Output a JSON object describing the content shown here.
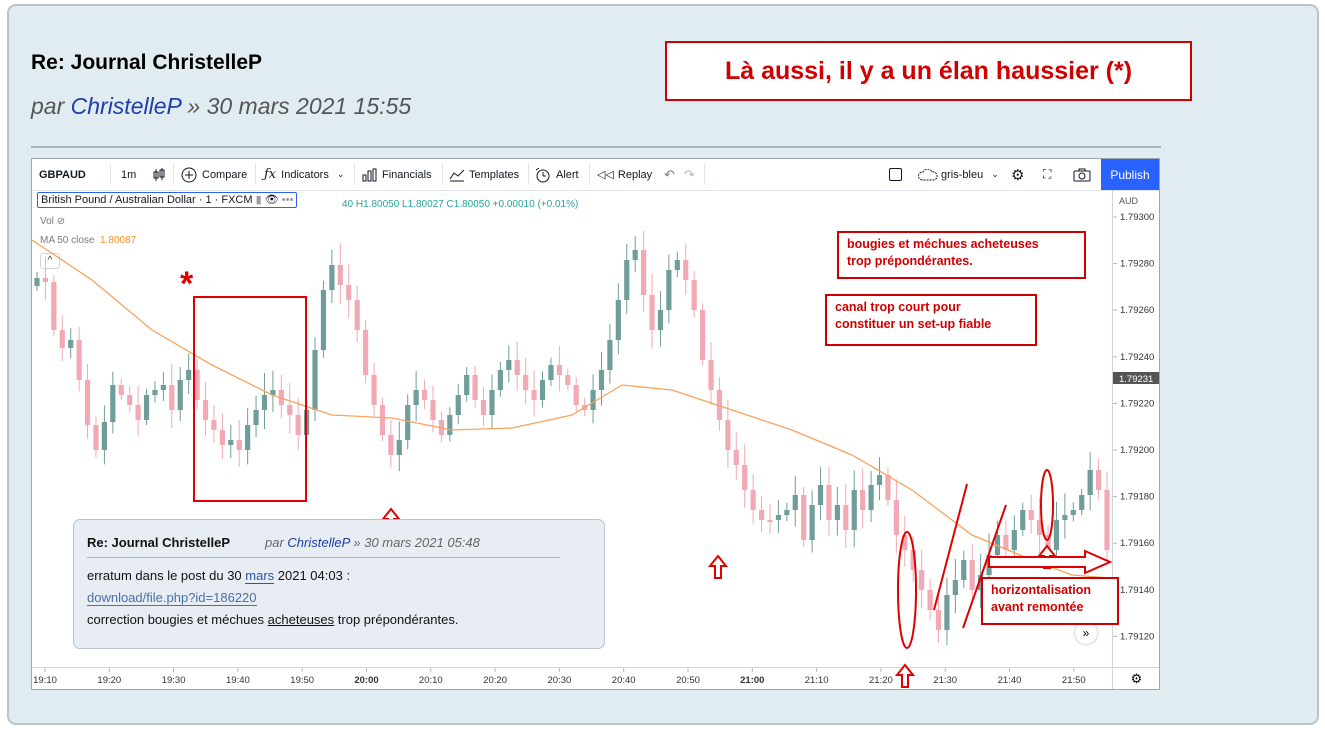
{
  "post": {
    "title": "Re: Journal ChristelleP",
    "by": "par ",
    "author": "ChristelleP",
    "date": " » 30 mars 2021 15:55",
    "callout": "Là aussi, il y a un élan haussier (*)"
  },
  "toolbar": {
    "symbol": "GBPAUD",
    "interval": "1m",
    "compare": "Compare",
    "indicators": "Indicators",
    "financials": "Financials",
    "templates": "Templates",
    "alert": "Alert",
    "replay": "Replay",
    "layout_name": "gris-bleu",
    "publish": "Publish"
  },
  "legend": {
    "symbol_name": "British Pound / Australian Dollar · 1 · FXCM",
    "dots": "•••",
    "ohlc": "40  H1.80050  L1.80027  C1.80050  +0.00010 (+0.01%)",
    "vol": "Vol",
    "ma_label": "MA 50 close",
    "ma_value": "1.80087"
  },
  "price_axis": {
    "currency": "AUD",
    "ticks": [
      "1.79300",
      "1.79280",
      "1.79260",
      "1.79240",
      "1.79220",
      "1.79200",
      "1.79180",
      "1.79160",
      "1.79140",
      "1.79120"
    ],
    "current": "1.79231"
  },
  "time_axis": {
    "ticks": [
      "19:10",
      "19:20",
      "19:30",
      "19:40",
      "19:50",
      "20:00",
      "20:10",
      "20:20",
      "20:30",
      "20:40",
      "20:50",
      "21:00",
      "21:10",
      "21:20",
      "21:30",
      "21:40",
      "21:50"
    ]
  },
  "annotations": {
    "asterisk": "*",
    "note1": [
      "bougies et méchues  acheteuses",
      "trop prépondérantes."
    ],
    "note2": [
      "canal trop court pour",
      "constituer un set-up fiable"
    ],
    "note3": [
      "horizontalisation",
      "avant remontée"
    ]
  },
  "embedded_post": {
    "title": "Re: Journal ChristelleP",
    "by": "par ",
    "author": "ChristelleP",
    "date": " » 30 mars 2021 05:48",
    "line1_a": "erratum dans le post du 30 ",
    "line1_link": "mars",
    "line1_b": " 2021 04:03 :",
    "link": "download/file.php?id=186220",
    "line3_a": "correction bougies et méchues ",
    "line3_u": "acheteuses",
    "line3_b": " trop prépondérantes."
  },
  "colors": {
    "up": "#6f9e9a",
    "down": "#f2a9b4",
    "ma": "#f7a35c",
    "annotation": "#e00000",
    "publish": "#2962ff"
  }
}
